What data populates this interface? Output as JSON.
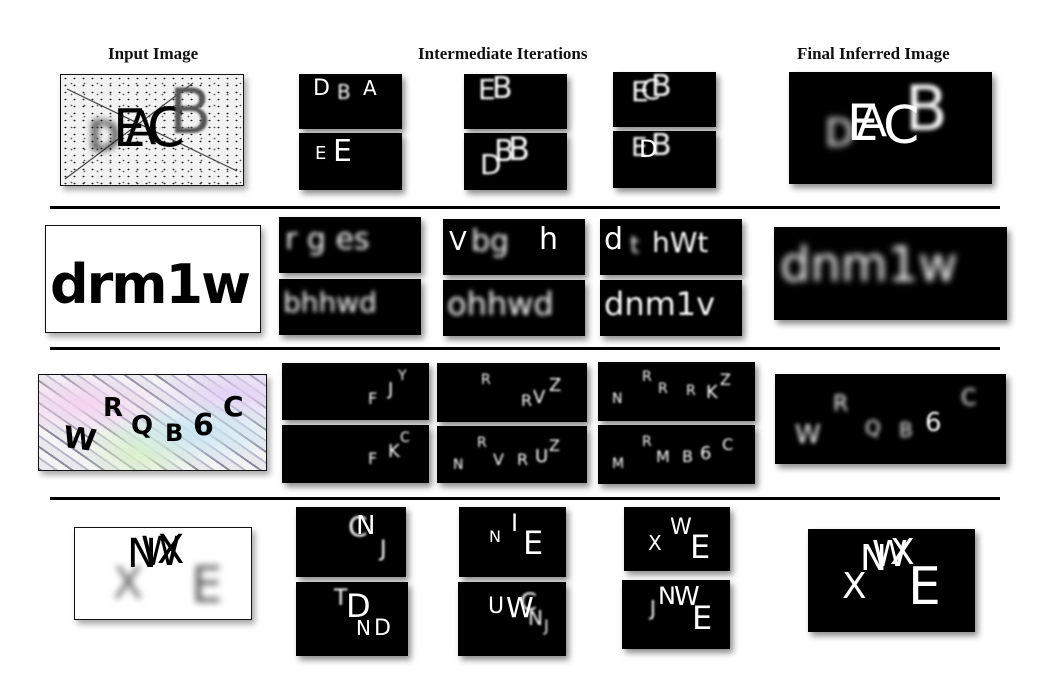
{
  "headers": {
    "input": "Input Image",
    "intermediate": "Intermediate Iterations",
    "final": "Final Inferred Image"
  },
  "rows": [
    {
      "iterations": [
        [
          {
            "t": "D",
            "x": 14,
            "y": 4,
            "s": 22
          },
          {
            "t": "B",
            "x": 38,
            "y": 8,
            "s": 20,
            "b": 1
          },
          {
            "t": "A",
            "x": 64,
            "y": 4,
            "s": 20
          }
        ],
        [
          {
            "t": "E",
            "x": 14,
            "y": 2,
            "s": 28,
            "b": 1
          },
          {
            "t": "B",
            "x": 28,
            "y": 0,
            "s": 30,
            "b": 1
          }
        ],
        [
          {
            "t": "E",
            "x": 18,
            "y": 6,
            "s": 28,
            "b": 1
          },
          {
            "t": "C",
            "x": 28,
            "y": 4,
            "s": 28,
            "b": 1
          },
          {
            "t": "B",
            "x": 38,
            "y": 0,
            "s": 30,
            "b": 1
          }
        ],
        [
          {
            "t": "E",
            "x": 16,
            "y": 12,
            "s": 18
          },
          {
            "t": "E",
            "x": 34,
            "y": 4,
            "s": 30
          }
        ],
        [
          {
            "t": "D",
            "x": 16,
            "y": 18,
            "s": 28,
            "b": 1
          },
          {
            "t": "B",
            "x": 30,
            "y": 4,
            "s": 30,
            "b": 1
          },
          {
            "t": "B",
            "x": 44,
            "y": 0,
            "s": 32,
            "b": 1
          }
        ],
        [
          {
            "t": "E",
            "x": 18,
            "y": 4,
            "s": 26,
            "b": 1
          },
          {
            "t": "D",
            "x": 26,
            "y": 6,
            "s": 24
          },
          {
            "t": "B",
            "x": 38,
            "y": 0,
            "s": 30,
            "b": 1
          }
        ]
      ],
      "final": [
        {
          "t": "D",
          "x": 36,
          "y": 42,
          "s": 38,
          "b": 3
        },
        {
          "t": "E",
          "x": 58,
          "y": 26,
          "s": 50
        },
        {
          "t": "A",
          "x": 68,
          "y": 28,
          "s": 44
        },
        {
          "t": "C",
          "x": 94,
          "y": 28,
          "s": 52
        },
        {
          "t": "B",
          "x": 116,
          "y": 6,
          "s": 62,
          "b": 2
        }
      ]
    },
    {
      "input": "drm1w",
      "iterations": [
        [
          {
            "t": "r g es",
            "x": 6,
            "y": 8,
            "s": 30,
            "b": 2
          }
        ],
        [
          {
            "t": "V",
            "x": 6,
            "y": 10,
            "s": 26
          },
          {
            "t": "bg",
            "x": 28,
            "y": 8,
            "s": 30,
            "b": 2
          },
          {
            "t": "h",
            "x": 96,
            "y": 6,
            "s": 30
          }
        ],
        [
          {
            "t": "d",
            "x": 4,
            "y": 6,
            "s": 30
          },
          {
            "t": "t",
            "x": 30,
            "y": 14,
            "s": 24,
            "b": 2
          },
          {
            "t": "hWt",
            "x": 52,
            "y": 10,
            "s": 28,
            "b": 1
          }
        ],
        [
          {
            "t": "bhhwd",
            "x": 4,
            "y": 10,
            "s": 28,
            "b": 2
          }
        ],
        [
          {
            "t": "ohhwd",
            "x": 4,
            "y": 8,
            "s": 32,
            "b": 2
          }
        ],
        [
          {
            "t": "dnm1v",
            "x": 4,
            "y": 8,
            "s": 32,
            "b": 1
          }
        ]
      ],
      "final": [
        {
          "t": "dnm1w",
          "x": 6,
          "y": 14,
          "s": 48,
          "b": 3
        }
      ]
    },
    {
      "input": "WRQB6C",
      "iterations": [
        [
          {
            "t": "F",
            "x": 86,
            "y": 28,
            "s": 16,
            "b": 1
          },
          {
            "t": "J",
            "x": 106,
            "y": 18,
            "s": 18,
            "b": 1
          },
          {
            "t": "Y",
            "x": 116,
            "y": 6,
            "s": 14,
            "b": 1
          }
        ],
        [
          {
            "t": "R",
            "x": 44,
            "y": 10,
            "s": 14,
            "b": 1
          },
          {
            "t": "R",
            "x": 84,
            "y": 30,
            "s": 16,
            "b": 1
          },
          {
            "t": "V",
            "x": 96,
            "y": 26,
            "s": 18,
            "b": 1
          },
          {
            "t": "Z",
            "x": 112,
            "y": 14,
            "s": 18,
            "b": 1
          }
        ],
        [
          {
            "t": "N",
            "x": 14,
            "y": 30,
            "s": 14,
            "b": 1
          },
          {
            "t": "R",
            "x": 44,
            "y": 8,
            "s": 14,
            "b": 1
          },
          {
            "t": "R",
            "x": 60,
            "y": 20,
            "s": 14,
            "b": 1
          },
          {
            "t": "R",
            "x": 88,
            "y": 22,
            "s": 14,
            "b": 1
          },
          {
            "t": "K",
            "x": 108,
            "y": 22,
            "s": 18,
            "b": 1
          },
          {
            "t": "Z",
            "x": 122,
            "y": 10,
            "s": 16,
            "b": 1
          }
        ],
        [
          {
            "t": "F",
            "x": 86,
            "y": 26,
            "s": 16,
            "b": 1
          },
          {
            "t": "K",
            "x": 106,
            "y": 18,
            "s": 18,
            "b": 1
          },
          {
            "t": "C",
            "x": 118,
            "y": 6,
            "s": 14,
            "b": 1
          }
        ],
        [
          {
            "t": "N",
            "x": 16,
            "y": 32,
            "s": 14,
            "b": 1
          },
          {
            "t": "R",
            "x": 40,
            "y": 10,
            "s": 14,
            "b": 1
          },
          {
            "t": "V",
            "x": 56,
            "y": 26,
            "s": 16,
            "b": 1
          },
          {
            "t": "R",
            "x": 80,
            "y": 26,
            "s": 16,
            "b": 1
          },
          {
            "t": "U",
            "x": 98,
            "y": 22,
            "s": 18,
            "b": 1
          },
          {
            "t": "Z",
            "x": 112,
            "y": 12,
            "s": 16,
            "b": 1
          }
        ],
        [
          {
            "t": "M",
            "x": 14,
            "y": 32,
            "s": 14,
            "b": 1
          },
          {
            "t": "R",
            "x": 44,
            "y": 10,
            "s": 14,
            "b": 1
          },
          {
            "t": "M",
            "x": 58,
            "y": 24,
            "s": 16,
            "b": 1
          },
          {
            "t": "B",
            "x": 84,
            "y": 24,
            "s": 16,
            "b": 1
          },
          {
            "t": "6",
            "x": 102,
            "y": 20,
            "s": 18,
            "b": 1
          },
          {
            "t": "C",
            "x": 124,
            "y": 12,
            "s": 16,
            "b": 1
          }
        ]
      ],
      "final": [
        {
          "t": "W",
          "x": 20,
          "y": 48,
          "s": 26,
          "b": 2
        },
        {
          "t": "R",
          "x": 58,
          "y": 20,
          "s": 22,
          "b": 2
        },
        {
          "t": "Q",
          "x": 90,
          "y": 44,
          "s": 20,
          "b": 2
        },
        {
          "t": "B",
          "x": 124,
          "y": 46,
          "s": 20,
          "b": 2
        },
        {
          "t": "6",
          "x": 150,
          "y": 36,
          "s": 26,
          "b": 1
        },
        {
          "t": "C",
          "x": 186,
          "y": 14,
          "s": 22,
          "b": 2
        }
      ]
    },
    {
      "iterations": [
        [
          {
            "t": "C",
            "x": 52,
            "y": 6,
            "s": 28,
            "b": 1
          },
          {
            "t": "N",
            "x": 60,
            "y": 6,
            "s": 26
          },
          {
            "t": "J",
            "x": 84,
            "y": 32,
            "s": 22,
            "b": 1
          }
        ],
        [
          {
            "t": "N",
            "x": 30,
            "y": 22,
            "s": 16
          },
          {
            "t": "I",
            "x": 52,
            "y": 4,
            "s": 24
          },
          {
            "t": "E",
            "x": 64,
            "y": 20,
            "s": 32
          }
        ],
        [
          {
            "t": "X",
            "x": 24,
            "y": 26,
            "s": 20
          },
          {
            "t": "W",
            "x": 46,
            "y": 10,
            "s": 22
          },
          {
            "t": "E",
            "x": 66,
            "y": 24,
            "s": 32
          }
        ],
        [
          {
            "t": "T",
            "x": 38,
            "y": 6,
            "s": 22,
            "b": 1
          },
          {
            "t": "D",
            "x": 50,
            "y": 8,
            "s": 32
          },
          {
            "t": "N",
            "x": 60,
            "y": 36,
            "s": 20
          },
          {
            "t": "D",
            "x": 78,
            "y": 36,
            "s": 22
          }
        ],
        [
          {
            "t": "U",
            "x": 30,
            "y": 14,
            "s": 22
          },
          {
            "t": "W",
            "x": 48,
            "y": 12,
            "s": 28
          },
          {
            "t": "C",
            "x": 62,
            "y": 8,
            "s": 24,
            "b": 1
          },
          {
            "t": "N",
            "x": 70,
            "y": 26,
            "s": 20,
            "b": 1
          },
          {
            "t": "J",
            "x": 86,
            "y": 36,
            "s": 16,
            "b": 1
          }
        ],
        [
          {
            "t": "J",
            "x": 28,
            "y": 18,
            "s": 20,
            "b": 1
          },
          {
            "t": "N",
            "x": 36,
            "y": 4,
            "s": 24
          },
          {
            "t": "W",
            "x": 52,
            "y": 4,
            "s": 26
          },
          {
            "t": "E",
            "x": 70,
            "y": 22,
            "s": 32
          }
        ]
      ],
      "final": [
        {
          "t": "X",
          "x": 34,
          "y": 40,
          "s": 36
        },
        {
          "t": "N",
          "x": 52,
          "y": 12,
          "s": 36
        },
        {
          "t": "W",
          "x": 64,
          "y": 8,
          "s": 36
        },
        {
          "t": "X",
          "x": 82,
          "y": 6,
          "s": 36
        },
        {
          "t": "E",
          "x": 100,
          "y": 32,
          "s": 52
        }
      ]
    }
  ]
}
